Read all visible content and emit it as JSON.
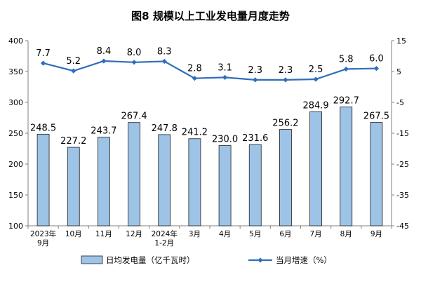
{
  "chart_data": {
    "type": "bar+line",
    "title": "图8  规模以上工业发电量月度走势",
    "categories": [
      [
        "2023年",
        "9月"
      ],
      [
        "10月"
      ],
      [
        "11月"
      ],
      [
        "12月"
      ],
      [
        "2024年",
        "1-2月"
      ],
      [
        "3月"
      ],
      [
        "4月"
      ],
      [
        "5月"
      ],
      [
        "6月"
      ],
      [
        "7月"
      ],
      [
        "8月"
      ],
      [
        "9月"
      ]
    ],
    "series": [
      {
        "name": "日均发电量（亿千瓦时）",
        "type": "bar",
        "axis": "left",
        "color": "#9DC3E6",
        "values": [
          248.5,
          227.2,
          243.7,
          267.4,
          247.8,
          241.2,
          230.0,
          231.6,
          256.2,
          284.9,
          292.7,
          267.5
        ]
      },
      {
        "name": "当月增速（%）",
        "type": "line",
        "axis": "right",
        "color": "#2F6EBA",
        "values": [
          7.7,
          5.2,
          8.4,
          8.0,
          8.3,
          2.8,
          3.1,
          2.3,
          2.3,
          2.5,
          5.8,
          6.0
        ]
      }
    ],
    "y_left": {
      "min": 100,
      "max": 400,
      "ticks": [
        100,
        150,
        200,
        250,
        300,
        350,
        400
      ]
    },
    "y_right": {
      "min": -45,
      "max": 15,
      "ticks": [
        15,
        5,
        -5,
        -15,
        -25,
        -35,
        -45
      ]
    },
    "grid": false,
    "legend": "bottom"
  }
}
